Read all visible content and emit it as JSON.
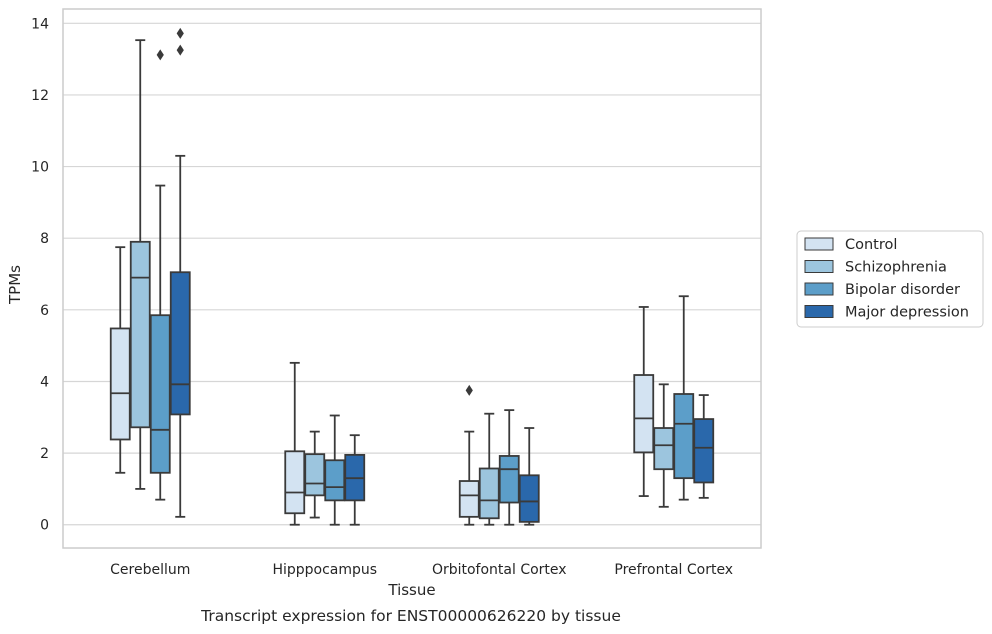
{
  "chart_data": {
    "type": "box",
    "caption": "Transcript expression for ENST00000626220 by tissue",
    "xlabel": "Tissue",
    "ylabel": "TPMs",
    "ylim": [
      -0.65,
      14.4
    ],
    "yticks": [
      0,
      2,
      4,
      6,
      8,
      10,
      12,
      14
    ],
    "grid": "horizontal",
    "legend_position": "right",
    "categories": [
      "Cerebellum",
      "Hipppocampus",
      "Orbitofontal Cortex",
      "Prefrontal Cortex"
    ],
    "series": [
      {
        "name": "Control",
        "color": "#d3e3f2",
        "boxes": [
          {
            "whislo": 1.45,
            "q1": 2.38,
            "med": 3.67,
            "q3": 5.48,
            "whishi": 7.75,
            "fliers": []
          },
          {
            "whislo": 0.0,
            "q1": 0.32,
            "med": 0.9,
            "q3": 2.05,
            "whishi": 4.52,
            "fliers": []
          },
          {
            "whislo": 0.0,
            "q1": 0.22,
            "med": 0.82,
            "q3": 1.22,
            "whishi": 2.6,
            "fliers": [
              3.75
            ]
          },
          {
            "whislo": 0.8,
            "q1": 2.02,
            "med": 2.97,
            "q3": 4.18,
            "whishi": 6.08,
            "fliers": []
          }
        ]
      },
      {
        "name": "Schizophrenia",
        "color": "#9cc5de",
        "boxes": [
          {
            "whislo": 1.0,
            "q1": 2.72,
            "med": 6.9,
            "q3": 7.9,
            "whishi": 13.53,
            "fliers": []
          },
          {
            "whislo": 0.2,
            "q1": 0.82,
            "med": 1.15,
            "q3": 1.97,
            "whishi": 2.6,
            "fliers": []
          },
          {
            "whislo": 0.0,
            "q1": 0.18,
            "med": 0.68,
            "q3": 1.57,
            "whishi": 3.1,
            "fliers": []
          },
          {
            "whislo": 0.5,
            "q1": 1.55,
            "med": 2.22,
            "q3": 2.7,
            "whishi": 3.92,
            "fliers": []
          }
        ]
      },
      {
        "name": "Bipolar disorder",
        "color": "#5c9ec9",
        "boxes": [
          {
            "whislo": 0.7,
            "q1": 1.45,
            "med": 2.65,
            "q3": 5.85,
            "whishi": 9.47,
            "fliers": [
              13.12
            ]
          },
          {
            "whislo": 0.0,
            "q1": 0.68,
            "med": 1.05,
            "q3": 1.8,
            "whishi": 3.05,
            "fliers": []
          },
          {
            "whislo": 0.0,
            "q1": 0.62,
            "med": 1.55,
            "q3": 1.92,
            "whishi": 3.2,
            "fliers": []
          },
          {
            "whislo": 0.7,
            "q1": 1.3,
            "med": 2.82,
            "q3": 3.65,
            "whishi": 6.38,
            "fliers": []
          }
        ]
      },
      {
        "name": "Major depression",
        "color": "#2a68ab",
        "boxes": [
          {
            "whislo": 0.22,
            "q1": 3.08,
            "med": 3.92,
            "q3": 7.05,
            "whishi": 10.3,
            "fliers": [
              13.25,
              13.72
            ]
          },
          {
            "whislo": 0.0,
            "q1": 0.68,
            "med": 1.3,
            "q3": 1.95,
            "whishi": 2.5,
            "fliers": []
          },
          {
            "whislo": 0.0,
            "q1": 0.08,
            "med": 0.65,
            "q3": 1.38,
            "whishi": 2.7,
            "fliers": []
          },
          {
            "whislo": 0.75,
            "q1": 1.18,
            "med": 2.15,
            "q3": 2.95,
            "whishi": 3.62,
            "fliers": []
          }
        ]
      }
    ]
  }
}
